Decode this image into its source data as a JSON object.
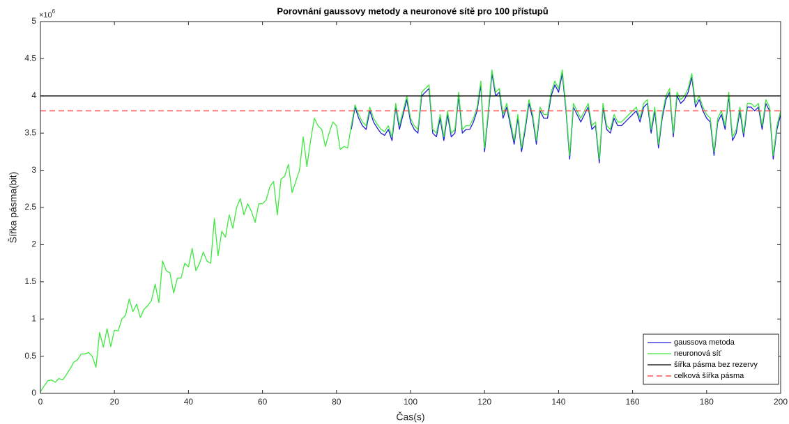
{
  "chart_data": {
    "type": "line",
    "title": "Porovnání gaussovy metody a neuronové sítě pro 100 přístupů",
    "xlabel": "Čas(s)",
    "ylabel": "Šířka pásma(bit)",
    "y_multiplier": "×10",
    "y_multiplier_exponent": "6",
    "xlim": [
      0,
      200
    ],
    "xticks": [
      0,
      20,
      40,
      60,
      80,
      100,
      120,
      140,
      160,
      180,
      200
    ],
    "ylim": [
      0,
      5
    ],
    "yticks": [
      0,
      0.5,
      1,
      1.5,
      2,
      2.5,
      3,
      3.5,
      4,
      4.5,
      5
    ],
    "legend": "lower right",
    "x": [
      0,
      1,
      2,
      3,
      4,
      5,
      6,
      7,
      8,
      9,
      10,
      11,
      12,
      13,
      14,
      15,
      16,
      17,
      18,
      19,
      20,
      21,
      22,
      23,
      24,
      25,
      26,
      27,
      28,
      29,
      30,
      31,
      32,
      33,
      34,
      35,
      36,
      37,
      38,
      39,
      40,
      41,
      42,
      43,
      44,
      45,
      46,
      47,
      48,
      49,
      50,
      51,
      52,
      53,
      54,
      55,
      56,
      57,
      58,
      59,
      60,
      61,
      62,
      63,
      64,
      65,
      66,
      67,
      68,
      69,
      70,
      71,
      72,
      73,
      74,
      75,
      76,
      77,
      78,
      79,
      80,
      81,
      82,
      83,
      84,
      85,
      86,
      87,
      88,
      89,
      90,
      91,
      92,
      93,
      94,
      95,
      96,
      97,
      98,
      99,
      100,
      101,
      102,
      103,
      104,
      105,
      106,
      107,
      108,
      109,
      110,
      111,
      112,
      113,
      114,
      115,
      116,
      117,
      118,
      119,
      120,
      121,
      122,
      123,
      124,
      125,
      126,
      127,
      128,
      129,
      130,
      131,
      132,
      133,
      134,
      135,
      136,
      137,
      138,
      139,
      140,
      141,
      142,
      143,
      144,
      145,
      146,
      147,
      148,
      149,
      150,
      151,
      152,
      153,
      154,
      155,
      156,
      157,
      158,
      159,
      160,
      161,
      162,
      163,
      164,
      165,
      166,
      167,
      168,
      169,
      170,
      171,
      172,
      173,
      174,
      175,
      176,
      177,
      178,
      179,
      180,
      181,
      182,
      183,
      184,
      185,
      186,
      187,
      188,
      189,
      190,
      191,
      192,
      193,
      194,
      195,
      196,
      197,
      198,
      199,
      200
    ],
    "series": [
      {
        "name": "gaussova metoda",
        "color": "#1f1fd6",
        "values": [
          null,
          null,
          null,
          null,
          null,
          null,
          null,
          null,
          null,
          null,
          null,
          null,
          null,
          null,
          null,
          null,
          null,
          null,
          null,
          null,
          null,
          null,
          null,
          null,
          null,
          null,
          null,
          null,
          null,
          null,
          null,
          null,
          null,
          null,
          null,
          null,
          null,
          null,
          null,
          null,
          null,
          null,
          null,
          null,
          null,
          null,
          null,
          null,
          null,
          null,
          null,
          null,
          null,
          null,
          null,
          null,
          null,
          null,
          null,
          null,
          null,
          null,
          null,
          null,
          null,
          null,
          null,
          null,
          null,
          null,
          null,
          null,
          null,
          null,
          null,
          null,
          null,
          null,
          null,
          null,
          null,
          null,
          null,
          null,
          3.55,
          3.85,
          3.7,
          3.6,
          3.55,
          3.8,
          3.65,
          3.57,
          3.5,
          3.47,
          3.55,
          3.4,
          3.85,
          3.55,
          3.75,
          3.95,
          3.65,
          3.55,
          3.5,
          4.0,
          4.05,
          4.1,
          3.5,
          3.45,
          3.7,
          3.4,
          3.75,
          3.45,
          3.5,
          4.0,
          3.5,
          3.55,
          3.55,
          3.65,
          3.8,
          4.15,
          3.25,
          3.75,
          4.3,
          4.0,
          4.05,
          3.7,
          3.85,
          3.6,
          3.35,
          3.7,
          3.25,
          3.55,
          3.9,
          3.7,
          3.35,
          3.8,
          3.7,
          3.7,
          4.0,
          4.15,
          4.05,
          4.3,
          3.8,
          3.15,
          3.85,
          3.75,
          3.65,
          3.75,
          3.85,
          3.55,
          3.6,
          3.1,
          3.85,
          3.55,
          3.5,
          3.7,
          3.6,
          3.6,
          3.65,
          3.7,
          3.75,
          3.8,
          3.65,
          3.85,
          3.9,
          3.5,
          3.8,
          3.3,
          3.7,
          3.95,
          4.05,
          3.45,
          4.0,
          3.9,
          3.95,
          4.05,
          4.25,
          3.85,
          3.95,
          3.8,
          3.7,
          3.65,
          3.2,
          3.65,
          3.75,
          3.55,
          4.0,
          3.4,
          3.5,
          3.8,
          3.45,
          3.85,
          3.85,
          3.8,
          3.85,
          3.55,
          3.9,
          3.8,
          3.15,
          3.55,
          3.75
        ]
      },
      {
        "name": "neuronová síť",
        "color": "#3ee83e",
        "values": [
          0.02,
          0.1,
          0.17,
          0.18,
          0.15,
          0.2,
          0.18,
          0.25,
          0.33,
          0.42,
          0.45,
          0.53,
          0.53,
          0.55,
          0.5,
          0.35,
          0.82,
          0.62,
          0.87,
          0.63,
          0.85,
          0.84,
          1.0,
          1.05,
          1.27,
          1.1,
          1.2,
          1.02,
          1.13,
          1.18,
          1.25,
          1.47,
          1.22,
          1.78,
          1.65,
          1.62,
          1.35,
          1.55,
          1.55,
          1.75,
          1.7,
          1.95,
          1.65,
          1.75,
          1.9,
          1.78,
          1.75,
          2.35,
          1.85,
          2.18,
          2.1,
          2.4,
          2.22,
          2.5,
          2.62,
          2.4,
          2.55,
          2.45,
          2.3,
          2.55,
          2.55,
          2.6,
          2.78,
          2.85,
          2.4,
          2.88,
          2.92,
          3.08,
          2.7,
          2.85,
          3.0,
          3.45,
          3.05,
          3.4,
          3.7,
          3.6,
          3.55,
          3.32,
          3.5,
          3.65,
          3.6,
          3.28,
          3.32,
          3.3,
          3.6,
          3.88,
          3.75,
          3.65,
          3.6,
          3.85,
          3.7,
          3.62,
          3.55,
          3.52,
          3.6,
          3.45,
          3.9,
          3.6,
          3.8,
          4.0,
          3.7,
          3.6,
          3.55,
          4.05,
          4.1,
          4.15,
          3.55,
          3.5,
          3.75,
          3.45,
          3.8,
          3.5,
          3.55,
          4.05,
          3.55,
          3.6,
          3.6,
          3.7,
          3.85,
          4.2,
          3.3,
          3.8,
          4.35,
          4.05,
          4.1,
          3.75,
          3.9,
          3.65,
          3.4,
          3.75,
          3.3,
          3.6,
          3.95,
          3.75,
          3.4,
          3.85,
          3.75,
          3.75,
          4.05,
          4.2,
          4.1,
          4.35,
          3.85,
          3.2,
          3.9,
          3.8,
          3.7,
          3.8,
          3.9,
          3.6,
          3.65,
          3.15,
          3.9,
          3.6,
          3.55,
          3.75,
          3.65,
          3.65,
          3.7,
          3.75,
          3.8,
          3.85,
          3.7,
          3.9,
          3.95,
          3.55,
          3.85,
          3.35,
          3.75,
          4.0,
          4.1,
          3.5,
          4.05,
          3.95,
          4.0,
          4.1,
          4.3,
          3.9,
          4.0,
          3.85,
          3.75,
          3.7,
          3.25,
          3.7,
          3.8,
          3.6,
          4.05,
          3.45,
          3.55,
          3.85,
          3.5,
          3.9,
          3.9,
          3.85,
          3.9,
          3.6,
          3.95,
          3.85,
          3.2,
          3.6,
          3.8
        ]
      }
    ],
    "reference_lines": [
      {
        "name": "šířka pásma bez rezervy",
        "color": "#000000",
        "value": 4,
        "dash": "solid"
      },
      {
        "name": "celková šířka pásma",
        "color": "#ff3333",
        "value": 3.8,
        "dash": "dashed"
      }
    ]
  }
}
